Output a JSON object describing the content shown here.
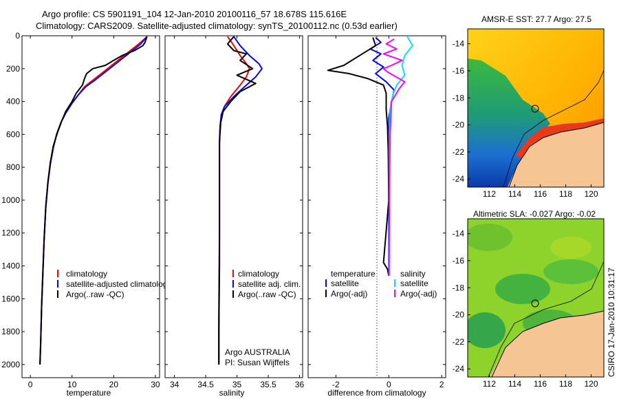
{
  "header": {
    "line1": "Argo profile: CS 5901191_104 12-Jan-2010 20100116_57 18.678S 115.616E",
    "line2": "Climatology: CARS2009. Satellite-adjusted climatology: synTS_20100112.nc (0.53d earlier)"
  },
  "side_label": "CSIRO 17-Jan-2010 10:31:17",
  "colors": {
    "climatology": "#ff0000",
    "satellite": "#0000ff",
    "argo": "#000000",
    "salinity_satellite": "#00e5ee",
    "salinity_argo": "#ff00ff",
    "land": "#f5c593"
  },
  "chart_data": [
    {
      "type": "line",
      "id": "temperature",
      "xlabel": "temperature",
      "ylabel": "",
      "xlim": [
        -2,
        31
      ],
      "ylim": [
        2080,
        0
      ],
      "xticks": [
        0,
        10,
        20,
        30
      ],
      "yticks": [
        0,
        200,
        400,
        600,
        800,
        1000,
        1200,
        1400,
        1600,
        1800,
        2000
      ],
      "legend": [
        "climatology",
        "satellite-adjusted climatology",
        "Argo(..raw -QC)"
      ],
      "legend_position": "lower-center",
      "series": [
        {
          "name": "climatology",
          "color": "#ff0000",
          "x": [
            28,
            26,
            23,
            20,
            17.5,
            15,
            13,
            11.5,
            10,
            8.5,
            7.3,
            6.3,
            5.5,
            4.8,
            4.2,
            3.7,
            3.3,
            3,
            2.7,
            2.5,
            2.3
          ],
          "y": [
            5,
            50,
            110,
            170,
            220,
            270,
            310,
            360,
            410,
            470,
            530,
            600,
            680,
            780,
            900,
            1050,
            1250,
            1450,
            1650,
            1850,
            2000
          ]
        },
        {
          "name": "satellite-adjusted climatology",
          "color": "#0000ff",
          "x": [
            28,
            26.5,
            23.5,
            20.5,
            18,
            15.5,
            13.3,
            11.5,
            10,
            8.5,
            7.3,
            6.3,
            5.5,
            4.8,
            4.2,
            3.7,
            3.3,
            3,
            2.7,
            2.5,
            2.3
          ],
          "y": [
            5,
            50,
            110,
            170,
            220,
            270,
            310,
            360,
            410,
            470,
            530,
            600,
            680,
            780,
            900,
            1050,
            1250,
            1450,
            1650,
            1850,
            2000
          ]
        },
        {
          "name": "Argo(..raw -QC)",
          "color": "#000000",
          "x": [
            28,
            27.5,
            27,
            25,
            22,
            20,
            18,
            15,
            13.5,
            13,
            12.5,
            11,
            10,
            8.5,
            7.5,
            6.5,
            5.5,
            4.8,
            4.2,
            3.7,
            3.3,
            3,
            2.7,
            2.5,
            2.3
          ],
          "y": [
            5,
            40,
            60,
            90,
            120,
            150,
            180,
            200,
            230,
            260,
            300,
            350,
            400,
            460,
            520,
            590,
            670,
            770,
            890,
            1040,
            1240,
            1440,
            1640,
            1840,
            2000
          ]
        }
      ]
    },
    {
      "type": "line",
      "id": "salinity",
      "xlabel": "salinity",
      "ylabel": "",
      "xlim": [
        33.85,
        36.05
      ],
      "ylim": [
        2080,
        0
      ],
      "xticks": [
        34,
        34.5,
        35,
        35.5,
        36
      ],
      "legend": [
        "climatology",
        "satellite adj. clim.",
        "Argo(..raw -QC)"
      ],
      "legend_position": "lower-center",
      "annotations": [
        "Argo AUSTRALIA",
        "PI: Susan Wijffels"
      ],
      "series": [
        {
          "name": "climatology",
          "color": "#ff0000",
          "x": [
            34.85,
            34.95,
            35.05,
            35.15,
            35.2,
            35.15,
            35.05,
            34.9,
            34.8,
            34.75,
            34.73,
            34.72,
            34.72,
            34.72,
            34.72,
            34.71,
            34.71
          ],
          "y": [
            5,
            60,
            120,
            170,
            200,
            250,
            300,
            370,
            430,
            480,
            550,
            650,
            800,
            1000,
            1400,
            1800,
            2000
          ]
        },
        {
          "name": "satellite adj. clim.",
          "color": "#0000ff",
          "x": [
            34.95,
            35.05,
            35.2,
            35.35,
            35.4,
            35.3,
            35.15,
            34.95,
            34.8,
            34.75,
            34.73,
            34.72,
            34.72,
            34.72,
            34.72,
            34.71,
            34.71
          ],
          "y": [
            5,
            60,
            120,
            170,
            200,
            250,
            300,
            370,
            430,
            480,
            550,
            650,
            800,
            1000,
            1400,
            1800,
            2000
          ]
        },
        {
          "name": "Argo(..raw -QC)",
          "color": "#000000",
          "x": [
            34.95,
            34.85,
            34.95,
            35.15,
            35.05,
            35.25,
            35.0,
            35.3,
            35.05,
            34.9,
            34.78,
            34.74,
            34.72,
            34.72,
            34.72,
            34.71,
            34.71
          ],
          "y": [
            5,
            50,
            90,
            110,
            150,
            200,
            240,
            290,
            340,
            400,
            460,
            530,
            650,
            800,
            1200,
            1700,
            2000
          ]
        }
      ]
    },
    {
      "type": "line",
      "id": "difference",
      "xlabel": "difference from climatology",
      "ylabel": "",
      "xlim": [
        -3.05,
        2.15
      ],
      "ylim": [
        2080,
        0
      ],
      "xticks": [
        -2,
        0,
        2
      ],
      "legend": [
        "temperature",
        "satellite",
        "Argo(-adj)",
        "salinity",
        "satellite",
        "Argo(-adj)"
      ],
      "legend_position": "lower-center",
      "series": [
        {
          "name": "temperature satellite",
          "color": "#0000ff",
          "x": [
            -0.5,
            -0.3,
            -0.7,
            -0.3,
            -0.6,
            -0.2,
            -0.5,
            -0.1,
            0.2,
            0.1,
            0,
            0,
            0,
            0,
            0
          ],
          "y": [
            10,
            40,
            80,
            110,
            150,
            190,
            230,
            280,
            330,
            400,
            500,
            650,
            900,
            1300,
            1460
          ]
        },
        {
          "name": "temperature Argo(-adj)",
          "color": "#000000",
          "x": [
            -0.6,
            -0.5,
            -1.0,
            -1.7,
            -2.3,
            -1.5,
            -0.8,
            -0.2,
            -0.1,
            -0.1,
            -0.05,
            -0.02,
            0,
            -0.2,
            -0.05,
            0
          ],
          "y": [
            10,
            60,
            110,
            180,
            210,
            230,
            260,
            300,
            350,
            450,
            550,
            700,
            1000,
            1380,
            1420,
            1460
          ]
        },
        {
          "name": "salinity satellite",
          "color": "#00e5ee",
          "x": [
            0.7,
            0.9,
            0.6,
            0.5,
            0.6,
            0.3,
            0.15,
            0.05,
            0.02,
            0.02,
            0.01,
            0.01
          ],
          "y": [
            5,
            60,
            120,
            180,
            240,
            300,
            360,
            450,
            600,
            900,
            1300,
            1460
          ]
        },
        {
          "name": "salinity Argo(-adj)",
          "color": "#ff00ff",
          "x": [
            0.2,
            -0.1,
            0.3,
            -0.2,
            0.5,
            0.1,
            -0.2,
            -0.05,
            0.6,
            0.4,
            0.1,
            0.05,
            0.02,
            0.01
          ],
          "y": [
            20,
            50,
            80,
            110,
            150,
            180,
            200,
            220,
            280,
            320,
            400,
            600,
            1000,
            1460
          ]
        }
      ]
    },
    {
      "type": "heatmap",
      "id": "sst-map",
      "title": "AMSR-E SST: 27.7 Argo: 27.5",
      "xlim": [
        110.3,
        121
      ],
      "ylim": [
        -24.6,
        -12.9
      ],
      "xticks": [
        112,
        114,
        116,
        118,
        120
      ],
      "yticks": [
        -14,
        -16,
        -18,
        -20,
        -22,
        -24
      ],
      "marker": {
        "lon": 115.616,
        "lat": -18.678
      }
    },
    {
      "type": "heatmap",
      "id": "sla-map",
      "title": "Altimetric SLA: -0.027 Argo: -0.02",
      "xlim": [
        110.3,
        121
      ],
      "ylim": [
        -24.6,
        -12.9
      ],
      "xticks": [
        112,
        114,
        116,
        118,
        120
      ],
      "yticks": [
        -14,
        -16,
        -18,
        -20,
        -22,
        -24
      ],
      "marker": {
        "lon": 115.616,
        "lat": -18.678
      }
    }
  ]
}
